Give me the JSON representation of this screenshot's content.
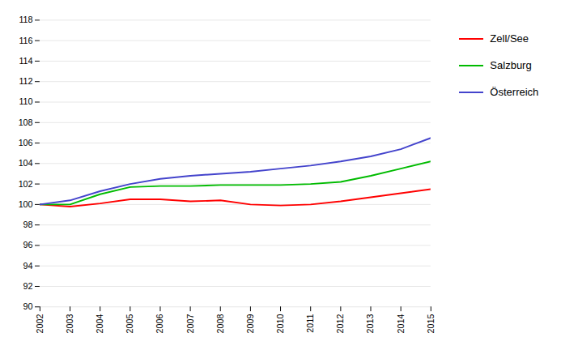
{
  "chart_data": {
    "type": "line",
    "x": [
      2002,
      2003,
      2004,
      2005,
      2006,
      2007,
      2008,
      2009,
      2010,
      2011,
      2012,
      2013,
      2014,
      2015
    ],
    "series": [
      {
        "name": "Zell/See",
        "color": "#ff0000",
        "values": [
          100.0,
          99.8,
          100.1,
          100.5,
          100.5,
          100.3,
          100.4,
          100.0,
          99.9,
          100.0,
          100.3,
          100.7,
          101.1,
          101.5
        ]
      },
      {
        "name": "Salzburg",
        "color": "#00bb00",
        "values": [
          100.0,
          100.0,
          101.0,
          101.7,
          101.8,
          101.8,
          101.9,
          101.9,
          101.9,
          102.0,
          102.2,
          102.8,
          103.5,
          104.2
        ]
      },
      {
        "name": "Österreich",
        "color": "#4444cc",
        "values": [
          100.0,
          100.4,
          101.3,
          102.0,
          102.5,
          102.8,
          103.0,
          103.2,
          103.5,
          103.8,
          104.2,
          104.7,
          105.4,
          106.5
        ]
      }
    ],
    "xlim": [
      2002,
      2015
    ],
    "xticks": [
      2002,
      2003,
      2004,
      2005,
      2006,
      2007,
      2008,
      2009,
      2010,
      2011,
      2012,
      2013,
      2014,
      2015
    ],
    "ylim": [
      90,
      118
    ],
    "yticks": [
      90,
      92,
      94,
      96,
      98,
      100,
      102,
      104,
      106,
      108,
      110,
      112,
      114,
      116,
      118
    ],
    "grid": true,
    "legend": "right"
  }
}
